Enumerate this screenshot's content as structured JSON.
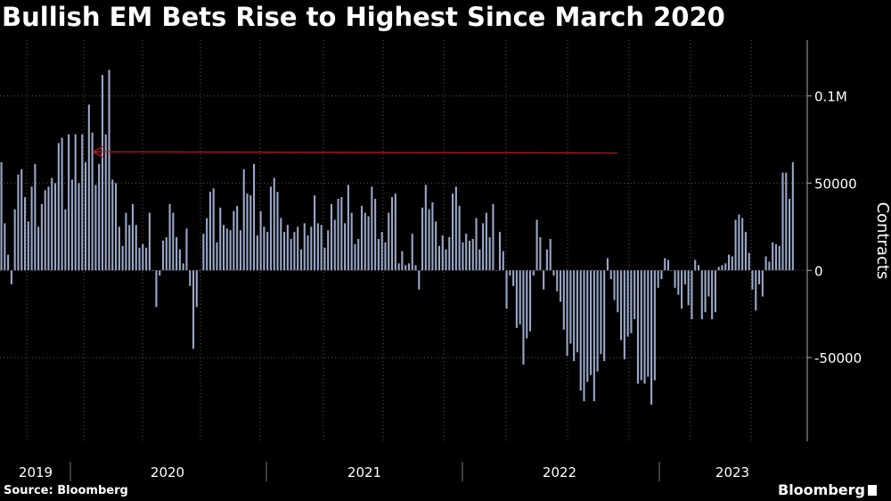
{
  "title": "Bullish EM Bets Rise to Highest Since March 2020",
  "source": "Source: Bloomberg",
  "brand": "Bloomberg",
  "colors": {
    "background": "#000000",
    "bar": "#9aa7c7",
    "arrow": "#c0141c",
    "grid": "#5a5a5a",
    "text": "#ffffff"
  },
  "chart_data": {
    "type": "bar",
    "ylabel": "Contracts",
    "ylim": [
      -98000,
      132000
    ],
    "yticks": [
      {
        "value": 100000,
        "label": "0.1M"
      },
      {
        "value": 50000,
        "label": "50000"
      },
      {
        "value": 0,
        "label": "0"
      },
      {
        "value": -50000,
        "label": "-50000"
      }
    ],
    "x_labels": [
      "2019",
      "2020",
      "2021",
      "2022",
      "2023"
    ],
    "grid": true,
    "annotations": [
      {
        "type": "arrow",
        "from_index": 183,
        "to_index": 27,
        "value": 68000
      }
    ],
    "values": [
      62000,
      27000,
      9000,
      -8000,
      35000,
      55000,
      58000,
      42000,
      28000,
      48000,
      61000,
      25000,
      38000,
      46000,
      48000,
      53000,
      50000,
      73000,
      76000,
      35000,
      78000,
      52000,
      78000,
      50000,
      78000,
      62000,
      95000,
      79000,
      49000,
      61000,
      112000,
      78000,
      115000,
      52000,
      50000,
      25000,
      14000,
      33000,
      26000,
      38000,
      26000,
      13000,
      15000,
      13000,
      33000,
      0,
      -21000,
      -3000,
      17000,
      19000,
      38000,
      33000,
      19000,
      12000,
      4000,
      24000,
      -9000,
      -45000,
      -21000,
      0,
      21000,
      30000,
      45000,
      47000,
      16000,
      36000,
      26000,
      24000,
      23000,
      34000,
      37000,
      23000,
      58000,
      44000,
      43000,
      61000,
      20000,
      34000,
      25000,
      22000,
      48000,
      53000,
      45000,
      30000,
      22000,
      26000,
      18000,
      22000,
      25000,
      12000,
      27000,
      20000,
      25000,
      43000,
      27000,
      26000,
      13000,
      23000,
      38000,
      29000,
      41000,
      42000,
      27000,
      49000,
      33000,
      15000,
      18000,
      37000,
      33000,
      31000,
      48000,
      41000,
      18000,
      22000,
      16000,
      33000,
      42000,
      44000,
      4000,
      11000,
      3000,
      4000,
      21000,
      3000,
      -11000,
      36000,
      49000,
      35000,
      39000,
      28000,
      14000,
      20000,
      12000,
      19000,
      44000,
      48000,
      37000,
      16000,
      21000,
      17000,
      18000,
      30000,
      12000,
      27000,
      33000,
      19000,
      38000,
      0,
      22000,
      11000,
      -22000,
      -3000,
      -9000,
      -33000,
      -31000,
      -54000,
      -39000,
      -35000,
      -3000,
      29000,
      19000,
      -11000,
      12000,
      18000,
      -3000,
      -12000,
      -18000,
      -34000,
      -49000,
      -42000,
      -52000,
      -47000,
      -69000,
      -75000,
      -64000,
      -60000,
      -75000,
      -58000,
      -48000,
      -52000,
      7000,
      -5000,
      -17000,
      -24000,
      -40000,
      -51000,
      -38000,
      -36000,
      -28000,
      -65000,
      -63000,
      -65000,
      -61000,
      -77000,
      -63000,
      -10000,
      -5000,
      7000,
      6000,
      0,
      -10000,
      -14000,
      -22000,
      -8000,
      -20000,
      -28000,
      6000,
      3000,
      -28000,
      -24000,
      -15000,
      -28000,
      -24000,
      2000,
      3000,
      4000,
      9000,
      8000,
      29000,
      32000,
      30000,
      22000,
      10000,
      -11000,
      -23000,
      -8000,
      -15000,
      8000,
      5000,
      16000,
      15000,
      14000,
      56000,
      56000,
      41000,
      62000
    ]
  }
}
